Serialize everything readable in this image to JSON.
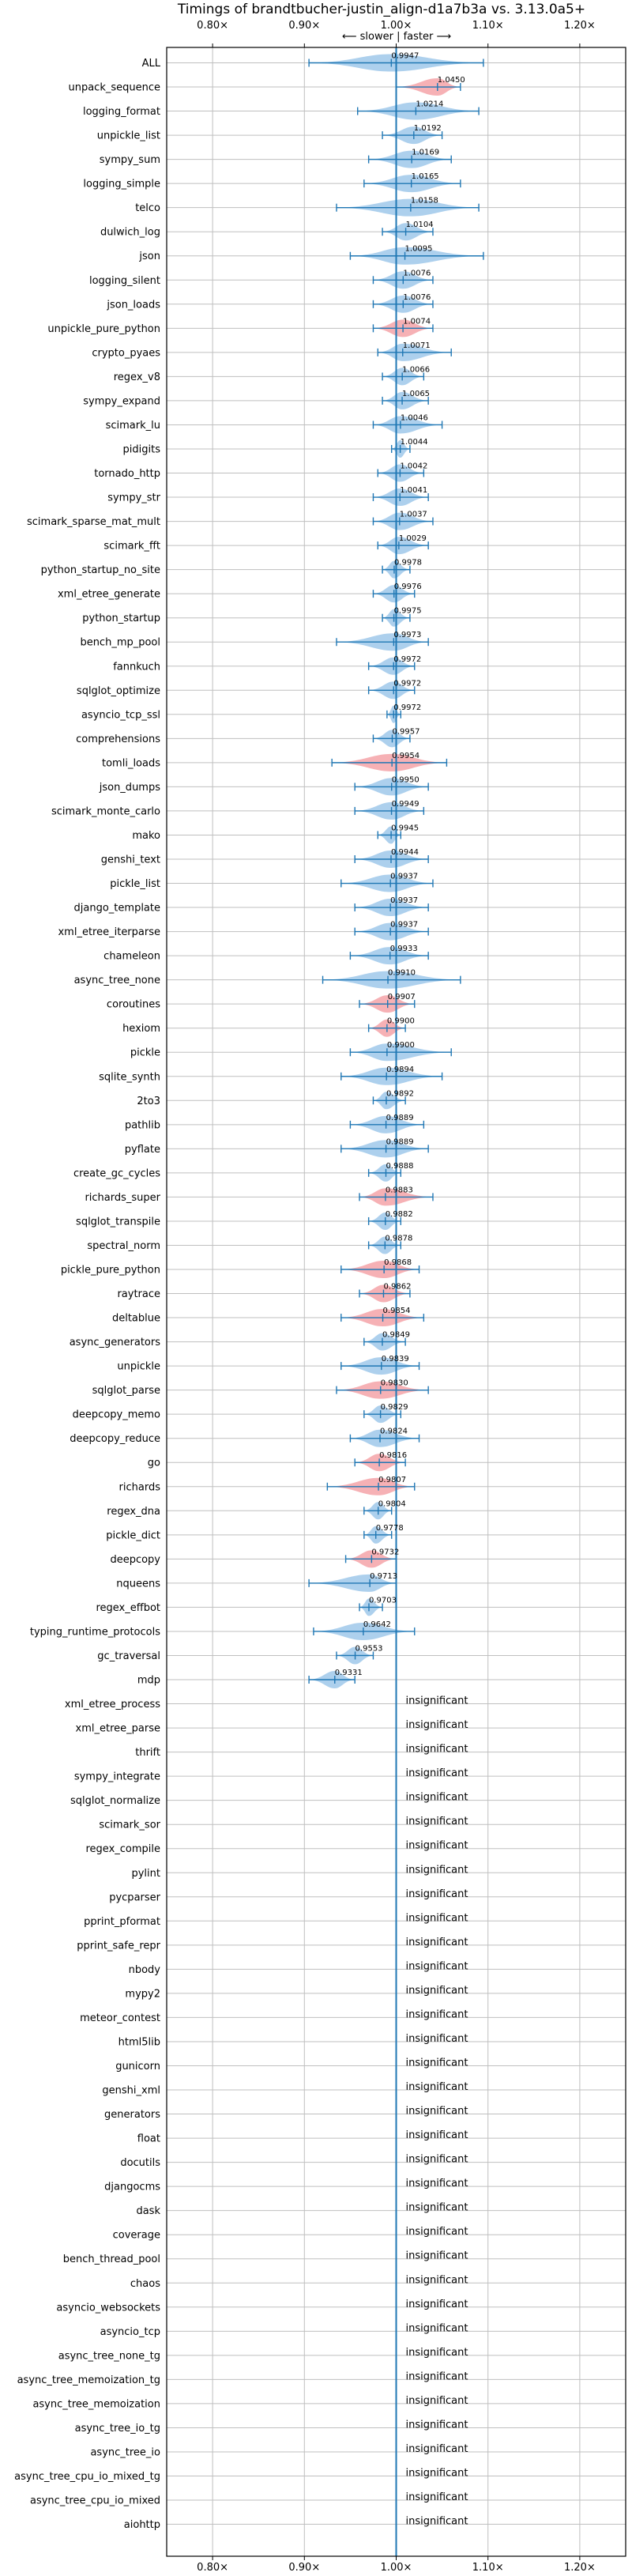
{
  "chart_data": {
    "type": "violin",
    "title": "Timings of brandtbucher-justin_align-d1a7b3a vs. 3.13.0a5+",
    "direction_note": "⟵ slower | faster ⟶",
    "xscale": "linear",
    "xlim": [
      0.75,
      1.25
    ],
    "x_ticks": [
      0.8,
      0.9,
      1.0,
      1.1,
      1.2
    ],
    "x_tick_labels": [
      "0.80×",
      "0.90×",
      "1.00×",
      "1.10×",
      "1.20×"
    ],
    "reference_line": 1.0,
    "grid": true,
    "colors": {
      "faster": "#9fc8ea",
      "slower": "#f4a3a8",
      "line": "#1f77b4",
      "grid": "#bfbfbf"
    },
    "insignificant_label": "insignificant",
    "benchmarks": [
      {
        "name": "ALL",
        "value": 0.9947,
        "label": "0.9947",
        "spread": [
          0.905,
          1.095
        ],
        "color": "blue"
      },
      {
        "name": "unpack_sequence",
        "value": 1.045,
        "label": "1.0450",
        "spread": [
          1.0,
          1.07
        ],
        "color": "red"
      },
      {
        "name": "logging_format",
        "value": 1.0214,
        "label": "1.0214",
        "spread": [
          0.958,
          1.09
        ],
        "color": "blue"
      },
      {
        "name": "unpickle_list",
        "value": 1.0192,
        "label": "1.0192",
        "spread": [
          0.985,
          1.05
        ],
        "color": "blue"
      },
      {
        "name": "sympy_sum",
        "value": 1.0169,
        "label": "1.0169",
        "spread": [
          0.97,
          1.06
        ],
        "color": "blue"
      },
      {
        "name": "logging_simple",
        "value": 1.0165,
        "label": "1.0165",
        "spread": [
          0.965,
          1.07
        ],
        "color": "blue"
      },
      {
        "name": "telco",
        "value": 1.0158,
        "label": "1.0158",
        "spread": [
          0.935,
          1.09
        ],
        "color": "blue"
      },
      {
        "name": "dulwich_log",
        "value": 1.0104,
        "label": "1.0104",
        "spread": [
          0.985,
          1.04
        ],
        "color": "blue"
      },
      {
        "name": "json",
        "value": 1.0095,
        "label": "1.0095",
        "spread": [
          0.95,
          1.095
        ],
        "color": "blue"
      },
      {
        "name": "logging_silent",
        "value": 1.0076,
        "label": "1.0076",
        "spread": [
          0.975,
          1.04
        ],
        "color": "blue"
      },
      {
        "name": "json_loads",
        "value": 1.0076,
        "label": "1.0076",
        "spread": [
          0.975,
          1.04
        ],
        "color": "blue"
      },
      {
        "name": "unpickle_pure_python",
        "value": 1.0074,
        "label": "1.0074",
        "spread": [
          0.975,
          1.04
        ],
        "color": "red"
      },
      {
        "name": "crypto_pyaes",
        "value": 1.0071,
        "label": "1.0071",
        "spread": [
          0.98,
          1.06
        ],
        "color": "blue"
      },
      {
        "name": "regex_v8",
        "value": 1.0066,
        "label": "1.0066",
        "spread": [
          0.985,
          1.03
        ],
        "color": "blue"
      },
      {
        "name": "sympy_expand",
        "value": 1.0065,
        "label": "1.0065",
        "spread": [
          0.985,
          1.035
        ],
        "color": "blue"
      },
      {
        "name": "scimark_lu",
        "value": 1.0046,
        "label": "1.0046",
        "spread": [
          0.975,
          1.05
        ],
        "color": "blue"
      },
      {
        "name": "pidigits",
        "value": 1.0044,
        "label": "1.0044",
        "spread": [
          0.995,
          1.015
        ],
        "color": "blue"
      },
      {
        "name": "tornado_http",
        "value": 1.0042,
        "label": "1.0042",
        "spread": [
          0.98,
          1.03
        ],
        "color": "blue"
      },
      {
        "name": "sympy_str",
        "value": 1.0041,
        "label": "1.0041",
        "spread": [
          0.975,
          1.035
        ],
        "color": "blue"
      },
      {
        "name": "scimark_sparse_mat_mult",
        "value": 1.0037,
        "label": "1.0037",
        "spread": [
          0.975,
          1.04
        ],
        "color": "blue"
      },
      {
        "name": "scimark_fft",
        "value": 1.0029,
        "label": "1.0029",
        "spread": [
          0.98,
          1.035
        ],
        "color": "blue"
      },
      {
        "name": "python_startup_no_site",
        "value": 0.9978,
        "label": "0.9978",
        "spread": [
          0.985,
          1.015
        ],
        "color": "blue"
      },
      {
        "name": "xml_etree_generate",
        "value": 0.9976,
        "label": "0.9976",
        "spread": [
          0.975,
          1.02
        ],
        "color": "blue"
      },
      {
        "name": "python_startup",
        "value": 0.9975,
        "label": "0.9975",
        "spread": [
          0.985,
          1.015
        ],
        "color": "blue"
      },
      {
        "name": "bench_mp_pool",
        "value": 0.9973,
        "label": "0.9973",
        "spread": [
          0.935,
          1.035
        ],
        "color": "blue"
      },
      {
        "name": "fannkuch",
        "value": 0.9972,
        "label": "0.9972",
        "spread": [
          0.97,
          1.02
        ],
        "color": "blue"
      },
      {
        "name": "sqlglot_optimize",
        "value": 0.9972,
        "label": "0.9972",
        "spread": [
          0.97,
          1.02
        ],
        "color": "blue"
      },
      {
        "name": "asyncio_tcp_ssl",
        "value": 0.9972,
        "label": "0.9972",
        "spread": [
          0.99,
          1.005
        ],
        "color": "blue"
      },
      {
        "name": "comprehensions",
        "value": 0.9957,
        "label": "0.9957",
        "spread": [
          0.975,
          1.015
        ],
        "color": "blue"
      },
      {
        "name": "tomli_loads",
        "value": 0.9954,
        "label": "0.9954",
        "spread": [
          0.93,
          1.055
        ],
        "color": "red"
      },
      {
        "name": "json_dumps",
        "value": 0.995,
        "label": "0.9950",
        "spread": [
          0.955,
          1.035
        ],
        "color": "blue"
      },
      {
        "name": "scimark_monte_carlo",
        "value": 0.9949,
        "label": "0.9949",
        "spread": [
          0.955,
          1.03
        ],
        "color": "blue"
      },
      {
        "name": "mako",
        "value": 0.9945,
        "label": "0.9945",
        "spread": [
          0.98,
          1.005
        ],
        "color": "blue"
      },
      {
        "name": "genshi_text",
        "value": 0.9944,
        "label": "0.9944",
        "spread": [
          0.955,
          1.035
        ],
        "color": "blue"
      },
      {
        "name": "pickle_list",
        "value": 0.9937,
        "label": "0.9937",
        "spread": [
          0.94,
          1.04
        ],
        "color": "blue"
      },
      {
        "name": "django_template",
        "value": 0.9937,
        "label": "0.9937",
        "spread": [
          0.955,
          1.035
        ],
        "color": "blue"
      },
      {
        "name": "xml_etree_iterparse",
        "value": 0.9937,
        "label": "0.9937",
        "spread": [
          0.955,
          1.035
        ],
        "color": "blue"
      },
      {
        "name": "chameleon",
        "value": 0.9933,
        "label": "0.9933",
        "spread": [
          0.95,
          1.035
        ],
        "color": "blue"
      },
      {
        "name": "async_tree_none",
        "value": 0.991,
        "label": "0.9910",
        "spread": [
          0.92,
          1.07
        ],
        "color": "blue"
      },
      {
        "name": "coroutines",
        "value": 0.9907,
        "label": "0.9907",
        "spread": [
          0.96,
          1.02
        ],
        "color": "red"
      },
      {
        "name": "hexiom",
        "value": 0.99,
        "label": "0.9900",
        "spread": [
          0.97,
          1.01
        ],
        "color": "red"
      },
      {
        "name": "pickle",
        "value": 0.99,
        "label": "0.9900",
        "spread": [
          0.95,
          1.06
        ],
        "color": "blue"
      },
      {
        "name": "sqlite_synth",
        "value": 0.9894,
        "label": "0.9894",
        "spread": [
          0.94,
          1.05
        ],
        "color": "blue"
      },
      {
        "name": "2to3",
        "value": 0.9892,
        "label": "0.9892",
        "spread": [
          0.975,
          1.01
        ],
        "color": "blue"
      },
      {
        "name": "pathlib",
        "value": 0.9889,
        "label": "0.9889",
        "spread": [
          0.95,
          1.03
        ],
        "color": "blue"
      },
      {
        "name": "pyflate",
        "value": 0.9889,
        "label": "0.9889",
        "spread": [
          0.94,
          1.035
        ],
        "color": "blue"
      },
      {
        "name": "create_gc_cycles",
        "value": 0.9888,
        "label": "0.9888",
        "spread": [
          0.97,
          1.005
        ],
        "color": "blue"
      },
      {
        "name": "richards_super",
        "value": 0.9883,
        "label": "0.9883",
        "spread": [
          0.96,
          1.04
        ],
        "color": "red"
      },
      {
        "name": "sqlglot_transpile",
        "value": 0.9882,
        "label": "0.9882",
        "spread": [
          0.97,
          1.005
        ],
        "color": "blue"
      },
      {
        "name": "spectral_norm",
        "value": 0.9878,
        "label": "0.9878",
        "spread": [
          0.97,
          1.005
        ],
        "color": "blue"
      },
      {
        "name": "pickle_pure_python",
        "value": 0.9868,
        "label": "0.9868",
        "spread": [
          0.94,
          1.025
        ],
        "color": "red"
      },
      {
        "name": "raytrace",
        "value": 0.9862,
        "label": "0.9862",
        "spread": [
          0.96,
          1.015
        ],
        "color": "red"
      },
      {
        "name": "deltablue",
        "value": 0.9854,
        "label": "0.9854",
        "spread": [
          0.94,
          1.03
        ],
        "color": "red"
      },
      {
        "name": "async_generators",
        "value": 0.9849,
        "label": "0.9849",
        "spread": [
          0.965,
          1.01
        ],
        "color": "blue"
      },
      {
        "name": "unpickle",
        "value": 0.9839,
        "label": "0.9839",
        "spread": [
          0.94,
          1.025
        ],
        "color": "blue"
      },
      {
        "name": "sqlglot_parse",
        "value": 0.983,
        "label": "0.9830",
        "spread": [
          0.935,
          1.035
        ],
        "color": "red"
      },
      {
        "name": "deepcopy_memo",
        "value": 0.9829,
        "label": "0.9829",
        "spread": [
          0.965,
          1.005
        ],
        "color": "blue"
      },
      {
        "name": "deepcopy_reduce",
        "value": 0.9824,
        "label": "0.9824",
        "spread": [
          0.95,
          1.025
        ],
        "color": "blue"
      },
      {
        "name": "go",
        "value": 0.9816,
        "label": "0.9816",
        "spread": [
          0.955,
          1.01
        ],
        "color": "red"
      },
      {
        "name": "richards",
        "value": 0.9807,
        "label": "0.9807",
        "spread": [
          0.925,
          1.02
        ],
        "color": "red"
      },
      {
        "name": "regex_dna",
        "value": 0.9804,
        "label": "0.9804",
        "spread": [
          0.965,
          0.995
        ],
        "color": "blue"
      },
      {
        "name": "pickle_dict",
        "value": 0.9778,
        "label": "0.9778",
        "spread": [
          0.965,
          0.995
        ],
        "color": "blue"
      },
      {
        "name": "deepcopy",
        "value": 0.9732,
        "label": "0.9732",
        "spread": [
          0.945,
          1.0
        ],
        "color": "red"
      },
      {
        "name": "nqueens",
        "value": 0.9713,
        "label": "0.9713",
        "spread": [
          0.905,
          1.0
        ],
        "color": "blue"
      },
      {
        "name": "regex_effbot",
        "value": 0.9703,
        "label": "0.9703",
        "spread": [
          0.96,
          0.985
        ],
        "color": "blue"
      },
      {
        "name": "typing_runtime_protocols",
        "value": 0.9642,
        "label": "0.9642",
        "spread": [
          0.91,
          1.02
        ],
        "color": "blue"
      },
      {
        "name": "gc_traversal",
        "value": 0.9553,
        "label": "0.9553",
        "spread": [
          0.935,
          0.975
        ],
        "color": "blue"
      },
      {
        "name": "mdp",
        "value": 0.9331,
        "label": "0.9331",
        "spread": [
          0.905,
          0.955
        ],
        "color": "blue"
      },
      {
        "name": "xml_etree_process",
        "insignificant": true
      },
      {
        "name": "xml_etree_parse",
        "insignificant": true
      },
      {
        "name": "thrift",
        "insignificant": true
      },
      {
        "name": "sympy_integrate",
        "insignificant": true
      },
      {
        "name": "sqlglot_normalize",
        "insignificant": true
      },
      {
        "name": "scimark_sor",
        "insignificant": true
      },
      {
        "name": "regex_compile",
        "insignificant": true
      },
      {
        "name": "pylint",
        "insignificant": true
      },
      {
        "name": "pycparser",
        "insignificant": true
      },
      {
        "name": "pprint_pformat",
        "insignificant": true
      },
      {
        "name": "pprint_safe_repr",
        "insignificant": true
      },
      {
        "name": "nbody",
        "insignificant": true
      },
      {
        "name": "mypy2",
        "insignificant": true
      },
      {
        "name": "meteor_contest",
        "insignificant": true
      },
      {
        "name": "html5lib",
        "insignificant": true
      },
      {
        "name": "gunicorn",
        "insignificant": true
      },
      {
        "name": "genshi_xml",
        "insignificant": true
      },
      {
        "name": "generators",
        "insignificant": true
      },
      {
        "name": "float",
        "insignificant": true
      },
      {
        "name": "docutils",
        "insignificant": true
      },
      {
        "name": "djangocms",
        "insignificant": true
      },
      {
        "name": "dask",
        "insignificant": true
      },
      {
        "name": "coverage",
        "insignificant": true
      },
      {
        "name": "bench_thread_pool",
        "insignificant": true
      },
      {
        "name": "chaos",
        "insignificant": true
      },
      {
        "name": "asyncio_websockets",
        "insignificant": true
      },
      {
        "name": "asyncio_tcp",
        "insignificant": true
      },
      {
        "name": "async_tree_none_tg",
        "insignificant": true
      },
      {
        "name": "async_tree_memoization_tg",
        "insignificant": true
      },
      {
        "name": "async_tree_memoization",
        "insignificant": true
      },
      {
        "name": "async_tree_io_tg",
        "insignificant": true
      },
      {
        "name": "async_tree_io",
        "insignificant": true
      },
      {
        "name": "async_tree_cpu_io_mixed_tg",
        "insignificant": true
      },
      {
        "name": "async_tree_cpu_io_mixed",
        "insignificant": true
      },
      {
        "name": "aiohttp",
        "insignificant": true
      }
    ]
  }
}
